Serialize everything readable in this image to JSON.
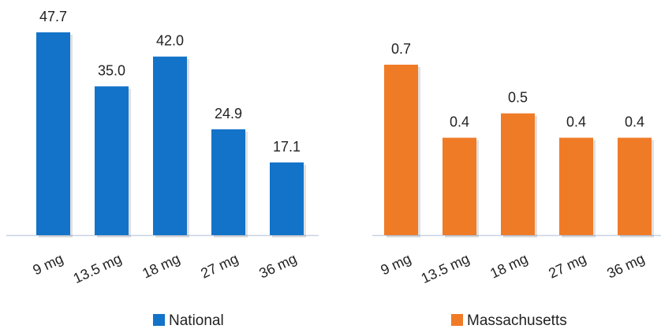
{
  "chart_data": [
    {
      "type": "bar",
      "categories": [
        "9 mg",
        "13.5 mg",
        "18 mg",
        "27 mg",
        "36 mg"
      ],
      "series": [
        {
          "name": "National",
          "values": [
            47.7,
            35.0,
            42.0,
            24.9,
            17.1
          ]
        }
      ],
      "ylim": [
        0,
        47.7
      ],
      "grid": false,
      "legend": "bottom",
      "color": "#1273C9",
      "value_format": "0.0"
    },
    {
      "type": "bar",
      "categories": [
        "9 mg",
        "13.5 mg",
        "18 mg",
        "27 mg",
        "36 mg"
      ],
      "series": [
        {
          "name": "Massachusetts",
          "values": [
            0.7,
            0.4,
            0.5,
            0.4,
            0.4
          ]
        }
      ],
      "ylim": [
        0,
        0.7
      ],
      "grid": false,
      "legend": "bottom",
      "color": "#F07B27",
      "value_format": "0.0"
    }
  ],
  "colors": {
    "axis_line": "#C9D3E6",
    "text": "#222222"
  }
}
